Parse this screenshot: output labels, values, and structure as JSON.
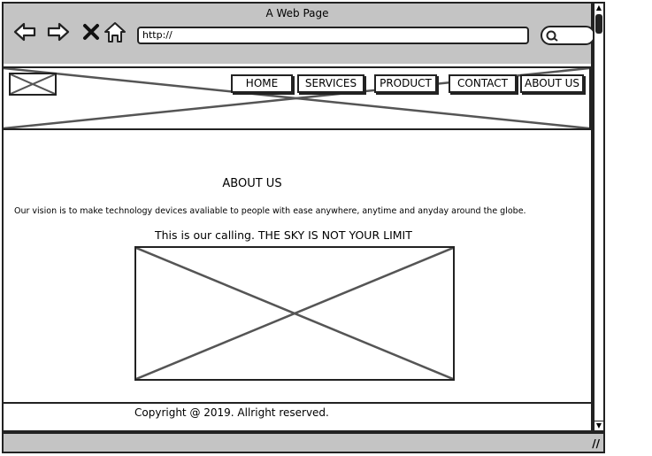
{
  "window": {
    "title": "A Web Page"
  },
  "browser": {
    "address_value": "http://",
    "nav_icons": [
      "back-arrow-icon",
      "forward-arrow-icon",
      "close-icon",
      "home-icon"
    ],
    "search_icon": "search-icon"
  },
  "site": {
    "menu": [
      {
        "label": "HOME"
      },
      {
        "label": "SERVICES"
      },
      {
        "label": "PRODUCT"
      },
      {
        "label": "CONTACT"
      },
      {
        "label": "ABOUT US"
      }
    ],
    "heading": "ABOUT US",
    "vision": "Our vision is to make technology devices avaliable to people with ease anywhere, anytime and anyday around the globe.",
    "calling": "This is our calling. THE SKY IS NOT YOUR LIMIT",
    "copyright": "Copyright @ 2019. Allright reserved."
  },
  "colors": {
    "chrome": "#c4c4c4",
    "stroke": "#222222",
    "placeholder": "#555555"
  }
}
